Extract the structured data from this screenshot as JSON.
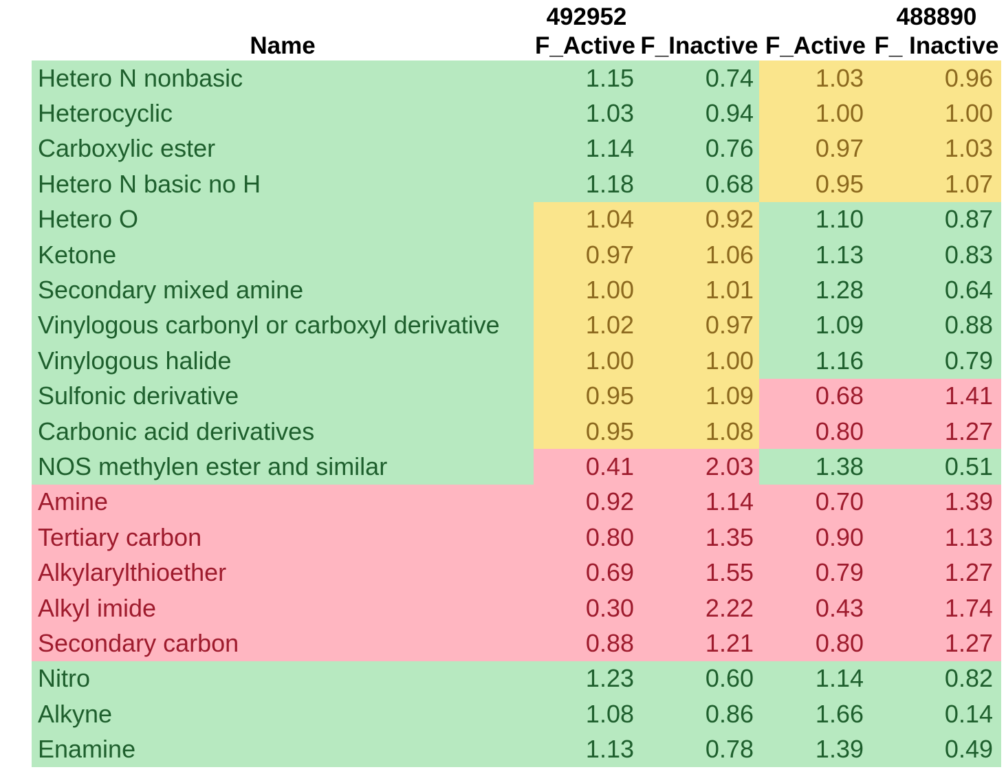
{
  "colors": {
    "good_bg": "#b7e9c0",
    "good_text": "#1e5f2d",
    "neutral_bg": "#fae58c",
    "neutral_text": "#8c691e",
    "bad_bg": "#ffb6c1",
    "bad_text": "#9e1b2d",
    "header_text": "#000000",
    "page_bg": "#ffffff"
  },
  "header": {
    "dataset1_id": "492952",
    "dataset2_id": "488890",
    "name_label": "Name",
    "value_columns": [
      "F_Active",
      "F_Inactive",
      "F_Active",
      "F_ Inactive"
    ]
  },
  "table": {
    "rows": [
      {
        "name": "Hetero N nonbasic",
        "name_state": "good",
        "values": [
          "1.15",
          "0.74",
          "1.03",
          "0.96"
        ],
        "value_states": [
          "good",
          "good",
          "neutral",
          "neutral"
        ]
      },
      {
        "name": "Heterocyclic",
        "name_state": "good",
        "values": [
          "1.03",
          "0.94",
          "1.00",
          "1.00"
        ],
        "value_states": [
          "good",
          "good",
          "neutral",
          "neutral"
        ]
      },
      {
        "name": "Carboxylic ester",
        "name_state": "good",
        "values": [
          "1.14",
          "0.76",
          "0.97",
          "1.03"
        ],
        "value_states": [
          "good",
          "good",
          "neutral",
          "neutral"
        ]
      },
      {
        "name": "Hetero N basic no H",
        "name_state": "good",
        "values": [
          "1.18",
          "0.68",
          "0.95",
          "1.07"
        ],
        "value_states": [
          "good",
          "good",
          "neutral",
          "neutral"
        ]
      },
      {
        "name": "Hetero O",
        "name_state": "good",
        "values": [
          "1.04",
          "0.92",
          "1.10",
          "0.87"
        ],
        "value_states": [
          "neutral",
          "neutral",
          "good",
          "good"
        ]
      },
      {
        "name": "Ketone",
        "name_state": "good",
        "values": [
          "0.97",
          "1.06",
          "1.13",
          "0.83"
        ],
        "value_states": [
          "neutral",
          "neutral",
          "good",
          "good"
        ]
      },
      {
        "name": "Secondary mixed amine",
        "name_state": "good",
        "values": [
          "1.00",
          "1.01",
          "1.28",
          "0.64"
        ],
        "value_states": [
          "neutral",
          "neutral",
          "good",
          "good"
        ]
      },
      {
        "name": "Vinylogous carbonyl or carboxyl derivative",
        "name_state": "good",
        "values": [
          "1.02",
          "0.97",
          "1.09",
          "0.88"
        ],
        "value_states": [
          "neutral",
          "neutral",
          "good",
          "good"
        ]
      },
      {
        "name": "Vinylogous halide",
        "name_state": "good",
        "values": [
          "1.00",
          "1.00",
          "1.16",
          "0.79"
        ],
        "value_states": [
          "neutral",
          "neutral",
          "good",
          "good"
        ]
      },
      {
        "name": "Sulfonic derivative",
        "name_state": "good",
        "values": [
          "0.95",
          "1.09",
          "0.68",
          "1.41"
        ],
        "value_states": [
          "neutral",
          "neutral",
          "bad",
          "bad"
        ]
      },
      {
        "name": "Carbonic acid derivatives",
        "name_state": "good",
        "values": [
          "0.95",
          "1.08",
          "0.80",
          "1.27"
        ],
        "value_states": [
          "neutral",
          "neutral",
          "bad",
          "bad"
        ]
      },
      {
        "name": "NOS methylen ester and similar",
        "name_state": "good",
        "values": [
          "0.41",
          "2.03",
          "1.38",
          "0.51"
        ],
        "value_states": [
          "bad",
          "bad",
          "good",
          "good"
        ]
      },
      {
        "name": "Amine",
        "name_state": "bad",
        "values": [
          "0.92",
          "1.14",
          "0.70",
          "1.39"
        ],
        "value_states": [
          "bad",
          "bad",
          "bad",
          "bad"
        ]
      },
      {
        "name": "Tertiary carbon",
        "name_state": "bad",
        "values": [
          "0.80",
          "1.35",
          "0.90",
          "1.13"
        ],
        "value_states": [
          "bad",
          "bad",
          "bad",
          "bad"
        ]
      },
      {
        "name": "Alkylarylthioether",
        "name_state": "bad",
        "values": [
          "0.69",
          "1.55",
          "0.79",
          "1.27"
        ],
        "value_states": [
          "bad",
          "bad",
          "bad",
          "bad"
        ]
      },
      {
        "name": "Alkyl imide",
        "name_state": "bad",
        "values": [
          "0.30",
          "2.22",
          "0.43",
          "1.74"
        ],
        "value_states": [
          "bad",
          "bad",
          "bad",
          "bad"
        ]
      },
      {
        "name": "Secondary carbon",
        "name_state": "bad",
        "values": [
          "0.88",
          "1.21",
          "0.80",
          "1.27"
        ],
        "value_states": [
          "bad",
          "bad",
          "bad",
          "bad"
        ]
      },
      {
        "name": "Nitro",
        "name_state": "good",
        "values": [
          "1.23",
          "0.60",
          "1.14",
          "0.82"
        ],
        "value_states": [
          "good",
          "good",
          "good",
          "good"
        ]
      },
      {
        "name": "Alkyne",
        "name_state": "good",
        "values": [
          "1.08",
          "0.86",
          "1.66",
          "0.14"
        ],
        "value_states": [
          "good",
          "good",
          "good",
          "good"
        ]
      },
      {
        "name": "Enamine",
        "name_state": "good",
        "values": [
          "1.13",
          "0.78",
          "1.39",
          "0.49"
        ],
        "value_states": [
          "good",
          "good",
          "good",
          "good"
        ]
      }
    ]
  }
}
